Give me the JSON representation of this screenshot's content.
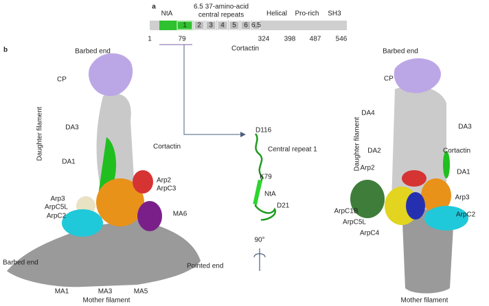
{
  "panel_a": {
    "label": "a",
    "header_1": "6.5 37-amino-acid",
    "header_2": "central repeats",
    "domains": [
      "NtA",
      "Helical",
      "Pro-rich",
      "SH3"
    ],
    "repeats": [
      "1",
      "2",
      "3",
      "4",
      "5",
      "6",
      "6.5"
    ],
    "positions": [
      "1",
      "79",
      "324",
      "398",
      "487",
      "546"
    ],
    "protein": "Cortactin"
  },
  "panel_b": {
    "label": "b",
    "left": [
      "Barbed end",
      "CP",
      "Daughter filament",
      "DA3",
      "DA1",
      "Cortactin",
      "Arp2",
      "ArpC3",
      "Arp3",
      "ArpC5L",
      "ArpC2",
      "MA6",
      "Barbed end",
      "Pointed end",
      "MA1",
      "MA3",
      "MA5",
      "Mother filament"
    ],
    "middle": [
      "D116",
      "Central repeat 1",
      "K79",
      "NtA",
      "D21",
      "90°"
    ],
    "right": [
      "Barbed end",
      "CP",
      "DA4",
      "DA3",
      "Daughter filament",
      "DA2",
      "DA1",
      "Cortactin",
      "Arp2",
      "Arp3",
      "ArpC1B",
      "ArpC5L",
      "ArpC2",
      "ArpC4",
      "Mother filament"
    ]
  }
}
